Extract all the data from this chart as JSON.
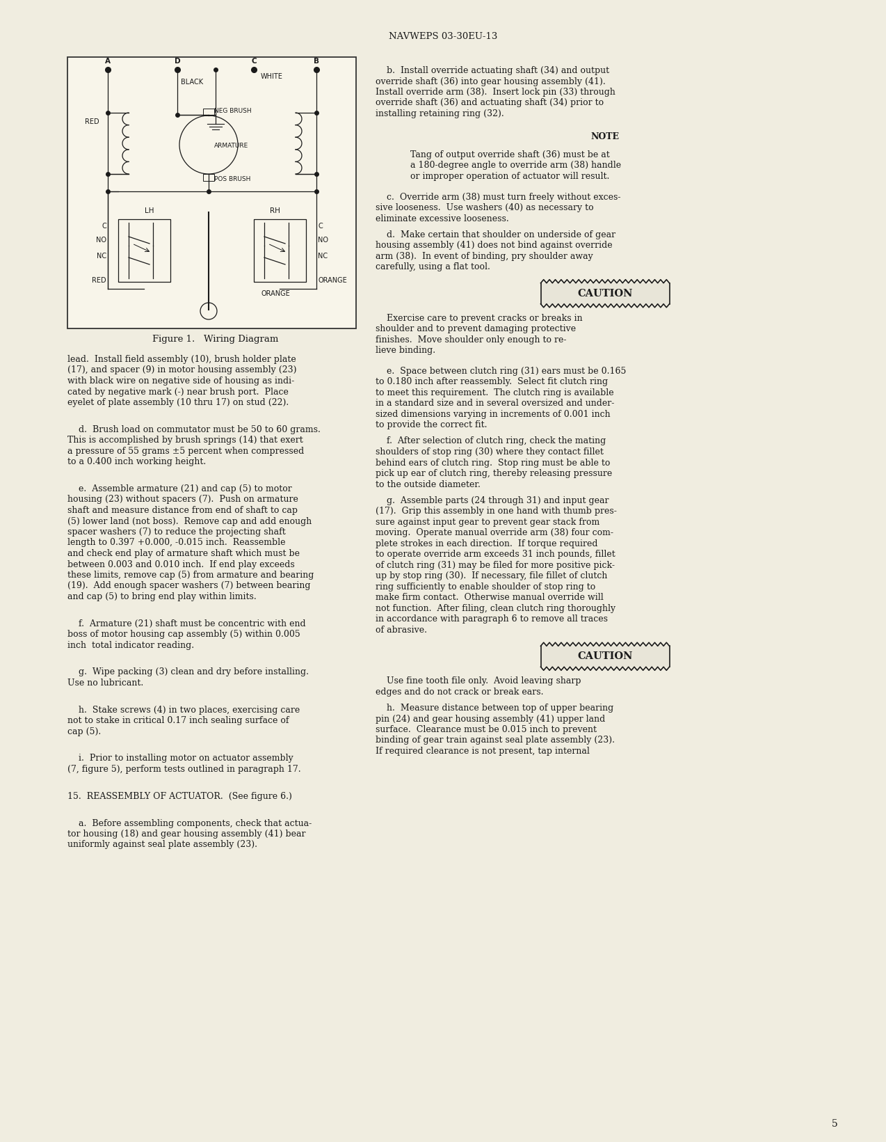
{
  "page_header": "NAVWEPS 03-30EU-13",
  "page_number": "5",
  "bg_color": "#f0ede0",
  "text_color": "#1a1a1a",
  "figure_caption": "Figure 1.   Wiring Diagram",
  "left_column_text": [
    "lead.  Install field assembly (10), brush holder plate",
    "(17), and spacer (9) in motor housing assembly (23)",
    "with black wire on negative side of housing as indi-",
    "cated by negative mark (-) near brush port.  Place",
    "eyelet of plate assembly (10 thru 17) on stud (22).",
    "",
    "    d.  Brush load on commutator must be 50 to 60 grams.",
    "This is accomplished by brush springs (14) that exert",
    "a pressure of 55 grams ±5 percent when compressed",
    "to a 0.400 inch working height.",
    "",
    "    e.  Assemble armature (21) and cap (5) to motor",
    "housing (23) without spacers (7).  Push on armature",
    "shaft and measure distance from end of shaft to cap",
    "(5) lower land (not boss).  Remove cap and add enough",
    "spacer washers (7) to reduce the projecting shaft",
    "length to 0.397 +0.000, -0.015 inch.  Reassemble",
    "and check end play of armature shaft which must be",
    "between 0.003 and 0.010 inch.  If end play exceeds",
    "these limits, remove cap (5) from armature and bearing",
    "(19).  Add enough spacer washers (7) between bearing",
    "and cap (5) to bring end play within limits.",
    "",
    "    f.  Armature (21) shaft must be concentric with end",
    "boss of motor housing cap assembly (5) within 0.005",
    "inch  total indicator reading.",
    "",
    "    g.  Wipe packing (3) clean and dry before installing.",
    "Use no lubricant.",
    "",
    "    h.  Stake screws (4) in two places, exercising care",
    "not to stake in critical 0.17 inch sealing surface of",
    "cap (5).",
    "",
    "    i.  Prior to installing motor on actuator assembly",
    "(7, figure 5), perform tests outlined in paragraph 17.",
    "",
    "15.  REASSEMBLY OF ACTUATOR.  (See figure 6.)",
    "",
    "    a.  Before assembling components, check that actua-",
    "tor housing (18) and gear housing assembly (41) bear",
    "uniformly against seal plate assembly (23)."
  ],
  "right_column_blocks": [
    {
      "type": "normal",
      "lines": [
        "    b.  Install override actuating shaft (34) and output",
        "override shaft (36) into gear housing assembly (41).",
        "Install override arm (38).  Insert lock pin (33) through",
        "override shaft (36) and actuating shaft (34) prior to",
        "installing retaining ring (32)."
      ]
    },
    {
      "type": "gap",
      "size": 18
    },
    {
      "type": "note_header",
      "text": "NOTE"
    },
    {
      "type": "gap",
      "size": 10
    },
    {
      "type": "note_body",
      "lines": [
        "Tang of output override shaft (36) must be at",
        "a 180-degree angle to override arm (38) handle",
        "or improper operation of actuator will result."
      ]
    },
    {
      "type": "gap",
      "size": 14
    },
    {
      "type": "normal",
      "lines": [
        "    c.  Override arm (38) must turn freely without exces-",
        "sive looseness.  Use washers (40) as necessary to",
        "eliminate excessive looseness.",
        "",
        "    d.  Make certain that shoulder on underside of gear",
        "housing assembly (41) does not bind against override",
        "arm (38).  In event of binding, pry shoulder away",
        "carefully, using a flat tool."
      ]
    },
    {
      "type": "gap",
      "size": 14
    },
    {
      "type": "caution_box",
      "text": "CAUTION"
    },
    {
      "type": "gap",
      "size": 14
    },
    {
      "type": "normal",
      "lines": [
        "    Exercise care to prevent cracks or breaks in",
        "shoulder and to prevent damaging protective",
        "finishes.  Move shoulder only enough to re-",
        "lieve binding."
      ]
    },
    {
      "type": "gap",
      "size": 14
    },
    {
      "type": "normal",
      "lines": [
        "    e.  Space between clutch ring (31) ears must be 0.165",
        "to 0.180 inch after reassembly.  Select fit clutch ring",
        "to meet this requirement.  The clutch ring is available",
        "in a standard size and in several oversized and under-",
        "sized dimensions varying in increments of 0.001 inch",
        "to provide the correct fit.",
        "",
        "    f.  After selection of clutch ring, check the mating",
        "shoulders of stop ring (30) where they contact fillet",
        "behind ears of clutch ring.  Stop ring must be able to",
        "pick up ear of clutch ring, thereby releasing pressure",
        "to the outside diameter.",
        "",
        "    g.  Assemble parts (24 through 31) and input gear",
        "(17).  Grip this assembly in one hand with thumb pres-",
        "sure against input gear to prevent gear stack from",
        "moving.  Operate manual override arm (38) four com-",
        "plete strokes in each direction.  If torque required",
        "to operate override arm exceeds 31 inch pounds, fillet",
        "of clutch ring (31) may be filed for more positive pick-",
        "up by stop ring (30).  If necessary, file fillet of clutch",
        "ring sufficiently to enable shoulder of stop ring to",
        "make firm contact.  Otherwise manual override will",
        "not function.  After filing, clean clutch ring thoroughly",
        "in accordance with paragraph 6 to remove all traces",
        "of abrasive."
      ]
    },
    {
      "type": "gap",
      "size": 14
    },
    {
      "type": "caution_box",
      "text": "CAUTION"
    },
    {
      "type": "gap",
      "size": 14
    },
    {
      "type": "normal",
      "lines": [
        "    Use fine tooth file only.  Avoid leaving sharp",
        "edges and do not crack or break ears.",
        "",
        "    h.  Measure distance between top of upper bearing",
        "pin (24) and gear housing assembly (41) upper land",
        "surface.  Clearance must be 0.015 inch to prevent",
        "binding of gear train against seal plate assembly (23).",
        "If required clearance is not present, tap internal"
      ]
    }
  ]
}
